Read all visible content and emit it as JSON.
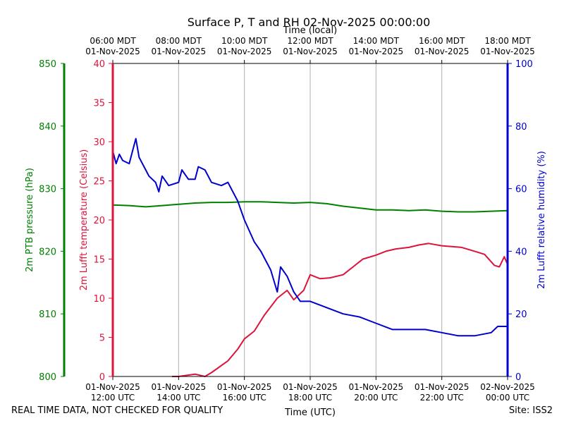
{
  "colors": {
    "pressure": "#008000",
    "temperature": "#dc143c",
    "humidity": "#0000cd",
    "grid": "#b0b0b0",
    "axis": "#000000"
  },
  "footer": {
    "quality_note": "REAL TIME DATA, NOT CHECKED FOR QUALITY",
    "site": "Site: ISS2"
  },
  "chart_data": {
    "type": "line",
    "title": "Surface P, T and RH 02-Nov-2025 00:00:00",
    "xlabel_bottom": "Time (UTC)",
    "xlabel_top": "Time (local)",
    "x_range_hours_utc": [
      12,
      24
    ],
    "bottom_ticks": [
      {
        "hour": 12,
        "date": "01-Nov-2025",
        "time": "12:00 UTC"
      },
      {
        "hour": 14,
        "date": "01-Nov-2025",
        "time": "14:00 UTC"
      },
      {
        "hour": 16,
        "date": "01-Nov-2025",
        "time": "16:00 UTC"
      },
      {
        "hour": 18,
        "date": "01-Nov-2025",
        "time": "18:00 UTC"
      },
      {
        "hour": 20,
        "date": "01-Nov-2025",
        "time": "20:00 UTC"
      },
      {
        "hour": 22,
        "date": "01-Nov-2025",
        "time": "22:00 UTC"
      },
      {
        "hour": 24,
        "date": "02-Nov-2025",
        "time": "00:00 UTC"
      }
    ],
    "top_ticks": [
      {
        "hour": 12,
        "time": "06:00 MDT",
        "date": "01-Nov-2025"
      },
      {
        "hour": 14,
        "time": "08:00 MDT",
        "date": "01-Nov-2025"
      },
      {
        "hour": 16,
        "time": "10:00 MDT",
        "date": "01-Nov-2025"
      },
      {
        "hour": 18,
        "time": "12:00 MDT",
        "date": "01-Nov-2025"
      },
      {
        "hour": 20,
        "time": "14:00 MDT",
        "date": "01-Nov-2025"
      },
      {
        "hour": 22,
        "time": "16:00 MDT",
        "date": "01-Nov-2025"
      },
      {
        "hour": 24,
        "time": "18:00 MDT",
        "date": "01-Nov-2025"
      }
    ],
    "axes": {
      "pressure": {
        "label": "2m PTB pressure (hPa)",
        "ylim": [
          800,
          850
        ],
        "ticks": [
          800,
          810,
          820,
          830,
          840,
          850
        ]
      },
      "temperature": {
        "label": "2m Lufft temperature (Celsius)",
        "ylim": [
          0,
          40
        ],
        "ticks": [
          0,
          5,
          10,
          15,
          20,
          25,
          30,
          35,
          40
        ]
      },
      "humidity": {
        "label": "2m Lufft relative humidity (%)",
        "ylim": [
          0,
          100
        ],
        "ticks": [
          0,
          20,
          40,
          60,
          80,
          100
        ]
      }
    },
    "series": [
      {
        "name": "2m PTB pressure",
        "axis": "pressure",
        "x": [
          12.0,
          12.5,
          13.0,
          13.5,
          14.0,
          14.5,
          15.0,
          15.5,
          16.0,
          16.5,
          17.0,
          17.5,
          18.0,
          18.5,
          19.0,
          19.5,
          20.0,
          20.5,
          21.0,
          21.5,
          22.0,
          22.5,
          23.0,
          23.5,
          24.0
        ],
        "y": [
          827.4,
          827.3,
          827.1,
          827.3,
          827.5,
          827.7,
          827.8,
          827.8,
          827.9,
          827.9,
          827.8,
          827.7,
          827.8,
          827.6,
          827.2,
          826.9,
          826.6,
          826.6,
          826.5,
          826.6,
          826.4,
          826.3,
          826.3,
          826.4,
          826.5
        ]
      },
      {
        "name": "2m Lufft temperature",
        "axis": "temperature",
        "x": [
          13.8,
          14.0,
          14.5,
          14.8,
          15.0,
          15.5,
          15.8,
          16.0,
          16.3,
          16.6,
          17.0,
          17.3,
          17.5,
          17.8,
          18.0,
          18.3,
          18.6,
          19.0,
          19.3,
          19.6,
          20.0,
          20.3,
          20.6,
          21.0,
          21.3,
          21.6,
          22.0,
          22.3,
          22.6,
          23.0,
          23.3,
          23.6,
          23.75,
          23.9,
          24.0
        ],
        "y": [
          0.0,
          -0.2,
          0.3,
          -0.4,
          0.5,
          2.0,
          3.5,
          4.8,
          5.8,
          7.8,
          10.0,
          11.0,
          9.8,
          11.0,
          13.0,
          12.5,
          12.6,
          13.0,
          14.0,
          15.0,
          15.5,
          16.0,
          16.3,
          16.5,
          16.8,
          17.0,
          16.7,
          16.6,
          16.5,
          16.0,
          15.6,
          14.2,
          14.0,
          15.3,
          14.3
        ]
      },
      {
        "name": "2m Lufft relative humidity",
        "axis": "humidity",
        "x": [
          12.0,
          12.1,
          12.2,
          12.3,
          12.5,
          12.6,
          12.7,
          12.8,
          13.0,
          13.1,
          13.3,
          13.4,
          13.5,
          13.7,
          14.0,
          14.1,
          14.3,
          14.5,
          14.6,
          14.8,
          15.0,
          15.3,
          15.5,
          15.8,
          16.0,
          16.3,
          16.5,
          16.8,
          17.0,
          17.1,
          17.3,
          17.5,
          17.7,
          18.0,
          18.5,
          19.0,
          19.5,
          20.0,
          20.5,
          21.0,
          21.5,
          22.0,
          22.5,
          23.0,
          23.5,
          23.7,
          24.0
        ],
        "y": [
          72,
          68,
          71,
          69,
          68,
          72,
          76,
          70,
          66,
          64,
          62,
          59,
          64,
          61,
          62,
          66,
          63,
          63,
          67,
          66,
          62,
          61,
          62,
          56,
          50,
          43,
          40,
          34,
          27,
          35,
          32,
          27,
          24,
          24,
          22,
          20,
          19,
          17,
          15,
          15,
          15,
          14,
          13,
          13,
          14,
          16,
          16
        ]
      }
    ]
  }
}
